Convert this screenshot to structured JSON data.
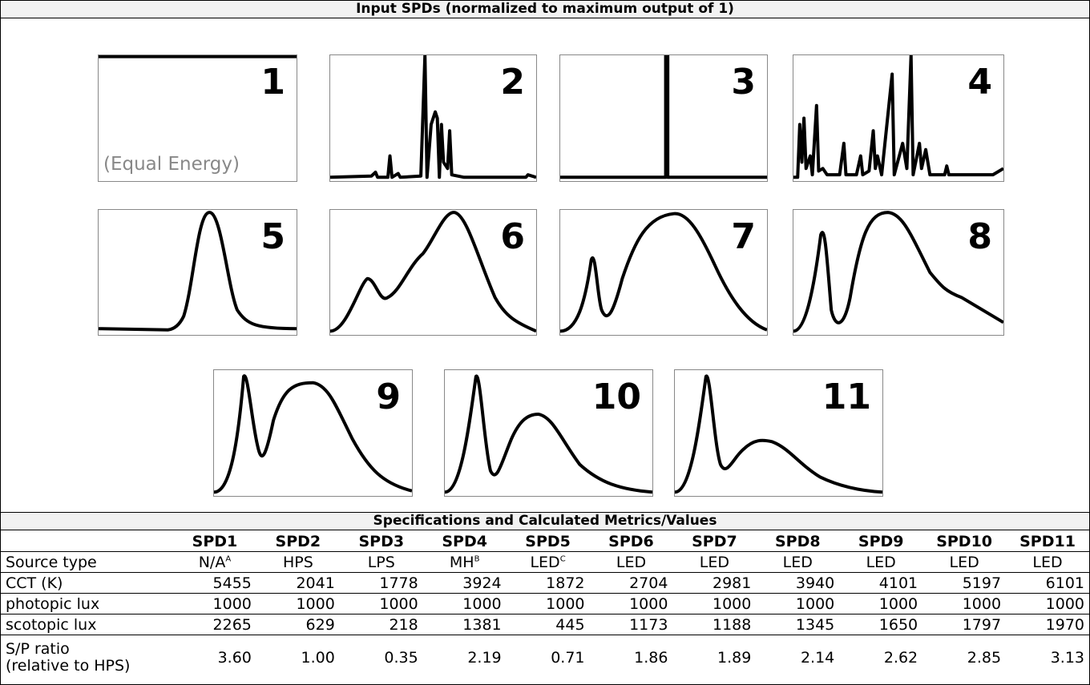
{
  "title": "Input SPDs (normalized to maximum output of 1)",
  "panels": [
    {
      "label": "1",
      "note": "(Equal Energy)"
    },
    {
      "label": "2"
    },
    {
      "label": "3"
    },
    {
      "label": "4"
    },
    {
      "label": "5"
    },
    {
      "label": "6"
    },
    {
      "label": "7"
    },
    {
      "label": "8"
    },
    {
      "label": "9"
    },
    {
      "label": "10"
    },
    {
      "label": "11"
    }
  ],
  "table": {
    "title": "Specifications and Calculated Metrics/Values",
    "columns": [
      "SPD1",
      "SPD2",
      "SPD3",
      "SPD4",
      "SPD5",
      "SPD6",
      "SPD7",
      "SPD8",
      "SPD9",
      "SPD10",
      "SPD11"
    ],
    "rows": [
      {
        "label": "Source type",
        "cells": [
          {
            "text": "N/A",
            "sup": "A"
          },
          "HPS",
          "LPS",
          {
            "text": "MH",
            "sup": "B"
          },
          {
            "text": "LED",
            "sup": "C"
          },
          "LED",
          "LED",
          "LED",
          "LED",
          "LED",
          "LED"
        ]
      },
      {
        "label": "CCT (K)",
        "cells": [
          "5455",
          "2041",
          "1778",
          "3924",
          "1872",
          "2704",
          "2981",
          "3940",
          "4101",
          "5197",
          "6101"
        ]
      },
      {
        "label": "photopic lux",
        "cells": [
          "1000",
          "1000",
          "1000",
          "1000",
          "1000",
          "1000",
          "1000",
          "1000",
          "1000",
          "1000",
          "1000"
        ]
      },
      {
        "label": "scotopic lux",
        "cells": [
          "2265",
          "629",
          "218",
          "1381",
          "445",
          "1173",
          "1188",
          "1345",
          "1650",
          "1797",
          "1970"
        ]
      },
      {
        "label": "S/P ratio\n(relative to HPS)",
        "cells": [
          "3.60",
          "1.00",
          "0.35",
          "2.19",
          "0.71",
          "1.86",
          "1.89",
          "2.14",
          "2.62",
          "2.85",
          "3.13"
        ]
      }
    ]
  }
}
